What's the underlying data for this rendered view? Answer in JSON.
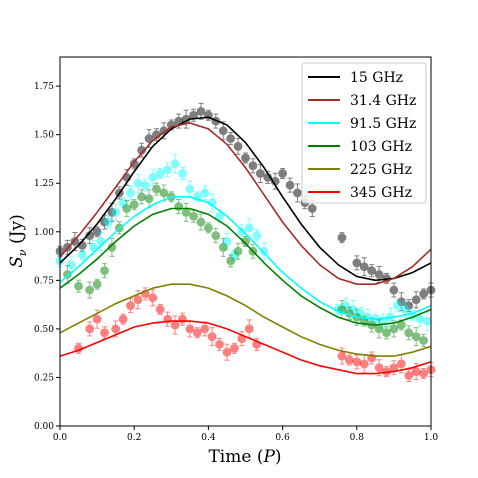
{
  "chart_data": {
    "type": "scatter",
    "xlabel_text": "Time (",
    "xlabel_var": "P",
    "xlabel_close": ")",
    "ylabel_var": "S",
    "ylabel_sub": "ν",
    "ylabel_unit": " (Jy)",
    "xlim": [
      0.0,
      1.0
    ],
    "ylim": [
      0.0,
      1.9
    ],
    "xticks": [
      "0.0",
      "0.2",
      "0.4",
      "0.6",
      "0.8",
      "1.0"
    ],
    "yticks": [
      "0.00",
      "0.25",
      "0.50",
      "0.75",
      "1.00",
      "1.25",
      "1.50",
      "1.75"
    ],
    "grid": false,
    "legend_position": "top-right",
    "series": [
      {
        "name": "15 GHz",
        "color": "#000000",
        "model": [
          [
            0.0,
            0.84
          ],
          [
            0.05,
            0.93
          ],
          [
            0.1,
            1.04
          ],
          [
            0.15,
            1.17
          ],
          [
            0.2,
            1.31
          ],
          [
            0.25,
            1.44
          ],
          [
            0.3,
            1.53
          ],
          [
            0.35,
            1.58
          ],
          [
            0.4,
            1.59
          ],
          [
            0.45,
            1.55
          ],
          [
            0.5,
            1.46
          ],
          [
            0.55,
            1.33
          ],
          [
            0.6,
            1.18
          ],
          [
            0.65,
            1.04
          ],
          [
            0.7,
            0.92
          ],
          [
            0.75,
            0.83
          ],
          [
            0.8,
            0.77
          ],
          [
            0.85,
            0.75
          ],
          [
            0.9,
            0.76
          ],
          [
            0.95,
            0.79
          ],
          [
            1.0,
            0.84
          ]
        ],
        "obs": [
          [
            0.0,
            0.9
          ],
          [
            0.02,
            0.92
          ],
          [
            0.04,
            0.95
          ],
          [
            0.06,
            0.93
          ],
          [
            0.08,
            0.98
          ],
          [
            0.1,
            1.0
          ],
          [
            0.12,
            1.05
          ],
          [
            0.14,
            1.1
          ],
          [
            0.16,
            1.2
          ],
          [
            0.18,
            1.28
          ],
          [
            0.2,
            1.35
          ],
          [
            0.22,
            1.42
          ],
          [
            0.24,
            1.48
          ],
          [
            0.26,
            1.5
          ],
          [
            0.28,
            1.52
          ],
          [
            0.3,
            1.55
          ],
          [
            0.32,
            1.57
          ],
          [
            0.34,
            1.58
          ],
          [
            0.36,
            1.6
          ],
          [
            0.38,
            1.62
          ],
          [
            0.4,
            1.6
          ],
          [
            0.42,
            1.57
          ],
          [
            0.44,
            1.52
          ],
          [
            0.46,
            1.48
          ],
          [
            0.48,
            1.44
          ],
          [
            0.5,
            1.38
          ],
          [
            0.52,
            1.34
          ],
          [
            0.54,
            1.3
          ],
          [
            0.56,
            1.28
          ],
          [
            0.58,
            1.26
          ],
          [
            0.6,
            1.3
          ],
          [
            0.62,
            1.24
          ],
          [
            0.64,
            1.2
          ],
          [
            0.66,
            1.15
          ],
          [
            0.68,
            1.12
          ],
          [
            0.76,
            0.97
          ],
          [
            0.8,
            0.84
          ],
          [
            0.82,
            0.82
          ],
          [
            0.84,
            0.8
          ],
          [
            0.86,
            0.78
          ],
          [
            0.88,
            0.76
          ],
          [
            0.9,
            0.7
          ],
          [
            0.92,
            0.64
          ],
          [
            0.94,
            0.62
          ],
          [
            0.96,
            0.65
          ],
          [
            0.98,
            0.68
          ],
          [
            1.0,
            0.7
          ]
        ]
      },
      {
        "name": "31.4 GHz",
        "color": "#a52a2a",
        "model": [
          [
            0.0,
            0.87
          ],
          [
            0.05,
            0.98
          ],
          [
            0.1,
            1.1
          ],
          [
            0.15,
            1.23
          ],
          [
            0.2,
            1.36
          ],
          [
            0.25,
            1.47
          ],
          [
            0.3,
            1.54
          ],
          [
            0.35,
            1.56
          ],
          [
            0.4,
            1.53
          ],
          [
            0.45,
            1.45
          ],
          [
            0.5,
            1.33
          ],
          [
            0.55,
            1.19
          ],
          [
            0.6,
            1.05
          ],
          [
            0.65,
            0.93
          ],
          [
            0.7,
            0.83
          ],
          [
            0.75,
            0.76
          ],
          [
            0.8,
            0.73
          ],
          [
            0.85,
            0.73
          ],
          [
            0.9,
            0.76
          ],
          [
            0.95,
            0.82
          ],
          [
            1.0,
            0.91
          ]
        ],
        "obs": []
      },
      {
        "name": "91.5 GHz",
        "color": "#00ffff",
        "model": [
          [
            0.0,
            0.74
          ],
          [
            0.05,
            0.82
          ],
          [
            0.1,
            0.91
          ],
          [
            0.15,
            1.0
          ],
          [
            0.2,
            1.08
          ],
          [
            0.25,
            1.14
          ],
          [
            0.3,
            1.18
          ],
          [
            0.35,
            1.18
          ],
          [
            0.4,
            1.15
          ],
          [
            0.45,
            1.08
          ],
          [
            0.5,
            0.99
          ],
          [
            0.55,
            0.89
          ],
          [
            0.6,
            0.79
          ],
          [
            0.65,
            0.71
          ],
          [
            0.7,
            0.64
          ],
          [
            0.75,
            0.59
          ],
          [
            0.8,
            0.56
          ],
          [
            0.85,
            0.55
          ],
          [
            0.9,
            0.56
          ],
          [
            0.95,
            0.58
          ],
          [
            1.0,
            0.62
          ]
        ],
        "obs": [
          [
            0.0,
            0.85
          ],
          [
            0.03,
            0.83
          ],
          [
            0.06,
            0.88
          ],
          [
            0.09,
            0.92
          ],
          [
            0.11,
            0.95
          ],
          [
            0.13,
            1.05
          ],
          [
            0.15,
            1.1
          ],
          [
            0.17,
            1.15
          ],
          [
            0.19,
            1.2
          ],
          [
            0.21,
            1.25
          ],
          [
            0.23,
            1.24
          ],
          [
            0.25,
            1.28
          ],
          [
            0.27,
            1.3
          ],
          [
            0.29,
            1.32
          ],
          [
            0.31,
            1.35
          ],
          [
            0.33,
            1.3
          ],
          [
            0.35,
            1.22
          ],
          [
            0.37,
            1.18
          ],
          [
            0.39,
            1.2
          ],
          [
            0.41,
            1.15
          ],
          [
            0.43,
            1.08
          ],
          [
            0.45,
            0.95
          ],
          [
            0.47,
            0.88
          ],
          [
            0.49,
            1.0
          ],
          [
            0.51,
            1.02
          ],
          [
            0.53,
            0.98
          ],
          [
            0.55,
            0.9
          ],
          [
            0.75,
            0.6
          ],
          [
            0.77,
            0.62
          ],
          [
            0.79,
            0.6
          ],
          [
            0.81,
            0.58
          ],
          [
            0.83,
            0.56
          ],
          [
            0.85,
            0.55
          ],
          [
            0.87,
            0.54
          ],
          [
            0.89,
            0.56
          ],
          [
            0.91,
            0.62
          ],
          [
            0.93,
            0.6
          ],
          [
            0.95,
            0.57
          ],
          [
            0.97,
            0.55
          ],
          [
            0.99,
            0.54
          ]
        ]
      },
      {
        "name": "103 GHz",
        "color": "#008000",
        "model": [
          [
            0.0,
            0.71
          ],
          [
            0.05,
            0.78
          ],
          [
            0.1,
            0.86
          ],
          [
            0.15,
            0.95
          ],
          [
            0.2,
            1.03
          ],
          [
            0.25,
            1.09
          ],
          [
            0.3,
            1.12
          ],
          [
            0.35,
            1.12
          ],
          [
            0.4,
            1.09
          ],
          [
            0.45,
            1.03
          ],
          [
            0.5,
            0.94
          ],
          [
            0.55,
            0.84
          ],
          [
            0.6,
            0.75
          ],
          [
            0.65,
            0.67
          ],
          [
            0.7,
            0.61
          ],
          [
            0.75,
            0.56
          ],
          [
            0.8,
            0.53
          ],
          [
            0.85,
            0.52
          ],
          [
            0.9,
            0.53
          ],
          [
            0.95,
            0.56
          ],
          [
            1.0,
            0.6
          ]
        ],
        "obs": [
          [
            0.02,
            0.78
          ],
          [
            0.05,
            0.72
          ],
          [
            0.08,
            0.7
          ],
          [
            0.1,
            0.73
          ],
          [
            0.12,
            0.8
          ],
          [
            0.14,
            0.92
          ],
          [
            0.16,
            1.02
          ],
          [
            0.18,
            1.12
          ],
          [
            0.2,
            1.14
          ],
          [
            0.22,
            1.18
          ],
          [
            0.24,
            1.17
          ],
          [
            0.26,
            1.22
          ],
          [
            0.28,
            1.2
          ],
          [
            0.3,
            1.18
          ],
          [
            0.32,
            1.13
          ],
          [
            0.34,
            1.1
          ],
          [
            0.36,
            1.08
          ],
          [
            0.38,
            1.05
          ],
          [
            0.4,
            1.02
          ],
          [
            0.42,
            0.98
          ],
          [
            0.44,
            0.92
          ],
          [
            0.46,
            0.85
          ],
          [
            0.48,
            0.9
          ],
          [
            0.5,
            0.95
          ],
          [
            0.52,
            0.9
          ],
          [
            0.76,
            0.6
          ],
          [
            0.78,
            0.58
          ],
          [
            0.8,
            0.56
          ],
          [
            0.82,
            0.54
          ],
          [
            0.84,
            0.52
          ],
          [
            0.86,
            0.5
          ],
          [
            0.88,
            0.48
          ],
          [
            0.9,
            0.5
          ],
          [
            0.92,
            0.52
          ],
          [
            0.94,
            0.48
          ],
          [
            0.96,
            0.46
          ],
          [
            0.98,
            0.44
          ]
        ]
      },
      {
        "name": "225 GHz",
        "color": "#808000",
        "model": [
          [
            0.0,
            0.48
          ],
          [
            0.05,
            0.53
          ],
          [
            0.1,
            0.58
          ],
          [
            0.15,
            0.63
          ],
          [
            0.2,
            0.67
          ],
          [
            0.25,
            0.71
          ],
          [
            0.3,
            0.73
          ],
          [
            0.35,
            0.73
          ],
          [
            0.4,
            0.71
          ],
          [
            0.45,
            0.67
          ],
          [
            0.5,
            0.62
          ],
          [
            0.55,
            0.56
          ],
          [
            0.6,
            0.51
          ],
          [
            0.65,
            0.46
          ],
          [
            0.7,
            0.42
          ],
          [
            0.75,
            0.39
          ],
          [
            0.8,
            0.37
          ],
          [
            0.85,
            0.36
          ],
          [
            0.9,
            0.36
          ],
          [
            0.95,
            0.38
          ],
          [
            1.0,
            0.41
          ]
        ],
        "obs": []
      },
      {
        "name": "345 GHz",
        "color": "#ff0000",
        "model": [
          [
            0.0,
            0.36
          ],
          [
            0.05,
            0.39
          ],
          [
            0.1,
            0.43
          ],
          [
            0.15,
            0.47
          ],
          [
            0.2,
            0.51
          ],
          [
            0.25,
            0.53
          ],
          [
            0.3,
            0.54
          ],
          [
            0.35,
            0.54
          ],
          [
            0.4,
            0.53
          ],
          [
            0.45,
            0.5
          ],
          [
            0.5,
            0.46
          ],
          [
            0.55,
            0.42
          ],
          [
            0.6,
            0.38
          ],
          [
            0.65,
            0.34
          ],
          [
            0.7,
            0.31
          ],
          [
            0.75,
            0.29
          ],
          [
            0.8,
            0.27
          ],
          [
            0.85,
            0.27
          ],
          [
            0.9,
            0.28
          ],
          [
            0.95,
            0.3
          ],
          [
            1.0,
            0.33
          ]
        ],
        "obs": [
          [
            0.05,
            0.4
          ],
          [
            0.08,
            0.5
          ],
          [
            0.1,
            0.55
          ],
          [
            0.12,
            0.48
          ],
          [
            0.15,
            0.5
          ],
          [
            0.17,
            0.55
          ],
          [
            0.19,
            0.62
          ],
          [
            0.21,
            0.65
          ],
          [
            0.23,
            0.68
          ],
          [
            0.25,
            0.66
          ],
          [
            0.27,
            0.6
          ],
          [
            0.29,
            0.55
          ],
          [
            0.31,
            0.52
          ],
          [
            0.33,
            0.55
          ],
          [
            0.35,
            0.5
          ],
          [
            0.37,
            0.48
          ],
          [
            0.39,
            0.5
          ],
          [
            0.41,
            0.46
          ],
          [
            0.43,
            0.42
          ],
          [
            0.45,
            0.38
          ],
          [
            0.47,
            0.4
          ],
          [
            0.49,
            0.45
          ],
          [
            0.51,
            0.5
          ],
          [
            0.53,
            0.42
          ],
          [
            0.76,
            0.36
          ],
          [
            0.78,
            0.34
          ],
          [
            0.8,
            0.33
          ],
          [
            0.82,
            0.32
          ],
          [
            0.84,
            0.35
          ],
          [
            0.86,
            0.3
          ],
          [
            0.88,
            0.28
          ],
          [
            0.9,
            0.3
          ],
          [
            0.92,
            0.32
          ],
          [
            0.94,
            0.26
          ],
          [
            0.96,
            0.28
          ],
          [
            0.98,
            0.27
          ],
          [
            1.0,
            0.29
          ]
        ]
      }
    ]
  }
}
